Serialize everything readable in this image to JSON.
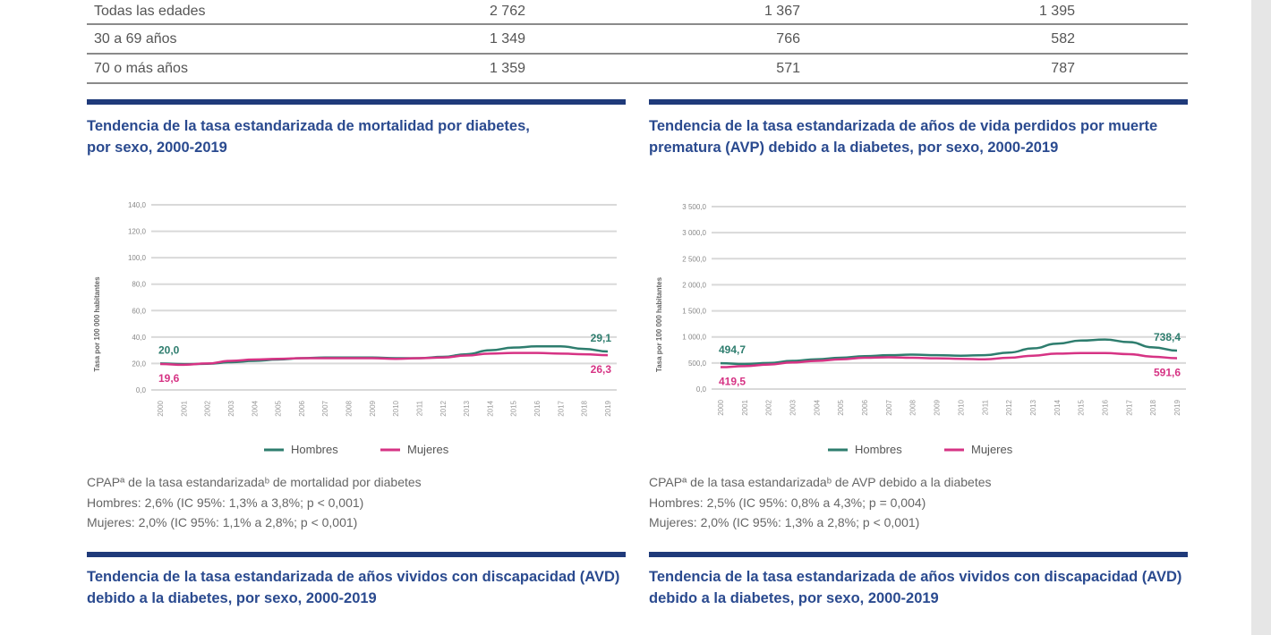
{
  "table": {
    "rows": [
      {
        "label": "Todas las edades",
        "total": "2 762",
        "hombres": "1 367",
        "mujeres": "1 395"
      },
      {
        "label": "30 a 69 años",
        "total": "1 349",
        "hombres": "766",
        "mujeres": "582"
      },
      {
        "label": "70 o más años",
        "total": "1 359",
        "hombres": "571",
        "mujeres": "787"
      }
    ]
  },
  "panels": [
    {
      "title": "Tendencia de la tasa estandarizada de mortalidad por diabetes, por sexo, 2000-2019",
      "notes": [
        "CPAPª de la tasa estandarizadaᵇ de mortalidad por diabetes",
        "Hombres: 2,6% (IC 95%: 1,3% a 3,8%; p < 0,001)",
        "Mujeres:  2,0% (IC 95%: 1,1% a 2,8%; p < 0,001)"
      ]
    },
    {
      "title": "Tendencia de la tasa estandarizada de años de vida perdidos por muerte prematura (AVP) debido a la diabetes, por sexo, 2000-2019",
      "notes": [
        "CPAPª de la tasa estandarizadaᵇ de AVP debido a la diabetes",
        "Hombres: 2,5% (IC 95%: 0,8% a 4,3%; p = 0,004)",
        "Mujeres:  2,0% (IC 95%: 1,3% a 2,8%; p < 0,001)"
      ]
    },
    {
      "title": "Tendencia de la tasa estandarizada de años vividos con discapacidad (AVD) debido a la diabetes, por sexo, 2000-2019"
    },
    {
      "title": "Tendencia de la tasa estandarizada de años vividos con discapacidad (AVD) debido a la diabetes, por sexo, 2000-2019"
    }
  ],
  "colors": {
    "hombres": "#2e7d6e",
    "mujeres": "#d63384",
    "title": "#2a4a8f",
    "bar": "#1f3a7a",
    "grid": "#d9d9d9"
  },
  "chart_data": [
    {
      "type": "line",
      "ylabel": "Tasa por 100 000 habitantes",
      "ylim": [
        0,
        140
      ],
      "yticks": [
        "0,0",
        "20,0",
        "40,0",
        "60,0",
        "80,0",
        "100,0",
        "120,0",
        "140,0"
      ],
      "x": [
        2000,
        2001,
        2002,
        2003,
        2004,
        2005,
        2006,
        2007,
        2008,
        2009,
        2010,
        2011,
        2012,
        2013,
        2014,
        2015,
        2016,
        2017,
        2018,
        2019
      ],
      "grid": true,
      "legend": "bottom",
      "series": [
        {
          "name": "Hombres",
          "values": [
            20.0,
            19.5,
            19.8,
            21,
            22,
            23,
            24,
            24.5,
            24.5,
            24.5,
            24,
            24,
            25,
            27,
            30,
            32,
            33,
            33,
            31,
            29.1
          ],
          "start_label": "20,0",
          "end_label": "29,1"
        },
        {
          "name": "Mujeres",
          "values": [
            19.6,
            19.0,
            20,
            22,
            23,
            23.5,
            24,
            24,
            24,
            24,
            23.5,
            24,
            24.5,
            26,
            27.5,
            28,
            28,
            27.5,
            27,
            26.3
          ],
          "start_label": "19,6",
          "end_label": "26,3"
        }
      ]
    },
    {
      "type": "line",
      "ylabel": "Tasa por 100 000 habitantes",
      "ylim": [
        0,
        3500
      ],
      "yticks": [
        "0,0",
        "500,0",
        "1 000,0",
        "1 500,0",
        "2 000,0",
        "2 500,0",
        "3 000,0",
        "3 500,0"
      ],
      "x": [
        2000,
        2001,
        2002,
        2003,
        2004,
        2005,
        2006,
        2007,
        2008,
        2009,
        2010,
        2011,
        2012,
        2013,
        2014,
        2015,
        2016,
        2017,
        2018,
        2019
      ],
      "grid": true,
      "legend": "bottom",
      "series": [
        {
          "name": "Hombres",
          "values": [
            494.7,
            480,
            500,
            540,
            570,
            600,
            630,
            650,
            660,
            650,
            640,
            650,
            700,
            780,
            870,
            930,
            950,
            900,
            800,
            738.4
          ],
          "start_label": "494,7",
          "end_label": "738,4"
        },
        {
          "name": "Mujeres",
          "values": [
            419.5,
            440,
            470,
            510,
            540,
            570,
            600,
            610,
            600,
            590,
            580,
            570,
            600,
            640,
            680,
            690,
            690,
            670,
            620,
            591.6
          ],
          "start_label": "419,5",
          "end_label": "591,6"
        }
      ]
    }
  ]
}
